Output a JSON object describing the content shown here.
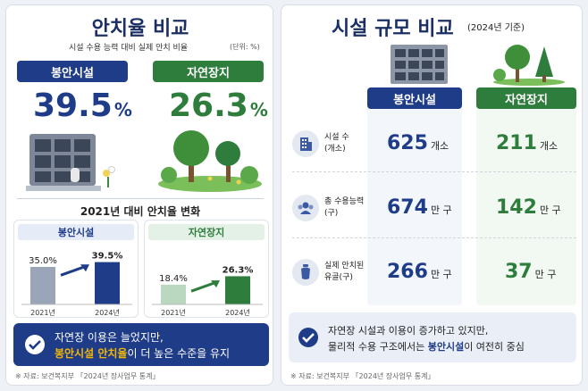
{
  "left": {
    "title": "안치율 비교",
    "subtitle": "시설 수용 능력 대비 실제 안치 비율",
    "unit": "(단위: %)",
    "boan_label": "봉안시설",
    "boan_value": "39.5",
    "nature_label": "자연장지",
    "nature_value": "26.3",
    "pct": "%",
    "change_title": "2021년 대비 안치율 변화",
    "banner_line1": "자연장 이용은 늘었지만,",
    "banner_line2_hl": "봉안시설 안치율",
    "banner_line2_rest": "이 더 높은 수준을 유지",
    "source": "※ 자료: 보건복지부 「2024년 장사업무 통계」"
  },
  "right": {
    "title": "시설 규모 비교",
    "title_note": "(2024년 기준)",
    "boan_label": "봉안시설",
    "nature_label": "자연장지",
    "rows": [
      {
        "label1": "시설 수",
        "label2": "(개소)",
        "boan": "625",
        "boan_unit": "개소",
        "nature": "211",
        "nature_unit": "개소"
      },
      {
        "label1": "총 수용능력",
        "label2": "(구)",
        "boan": "674",
        "boan_unit": "만 구",
        "nature": "142",
        "nature_unit": "만 구"
      },
      {
        "label1": "실제 안치된",
        "label2": "유골(구)",
        "boan": "266",
        "boan_unit": "만 구",
        "nature": "37",
        "nature_unit": "만 구"
      }
    ],
    "banner_line1": "자연장 시설과 이용이 증가하고 있지만,",
    "banner_line2_pre": "물리적 수용 구조에서는 ",
    "banner_line2_hl": "봉안시설",
    "banner_line2_rest": "이 여전히 중심",
    "source": "※ 자료: 보건복지부 「2024년 장사업무 통계」"
  },
  "chart_data": [
    {
      "type": "bar",
      "title": "봉안시설",
      "categories": [
        "2021년",
        "2024년"
      ],
      "values": [
        35.0,
        39.5
      ],
      "value_labels": [
        "35.0%",
        "39.5%"
      ],
      "colors": [
        "#9aa6b8",
        "#1f3c88"
      ]
    },
    {
      "type": "bar",
      "title": "자연장지",
      "categories": [
        "2021년",
        "2024년"
      ],
      "values": [
        18.4,
        26.3
      ],
      "value_labels": [
        "18.4%",
        "26.3%"
      ],
      "colors": [
        "#b9d8bf",
        "#2f7d3c"
      ]
    }
  ],
  "colors": {
    "navy": "#1f3c88",
    "green": "#2f7d3c",
    "amber": "#f2b705"
  }
}
